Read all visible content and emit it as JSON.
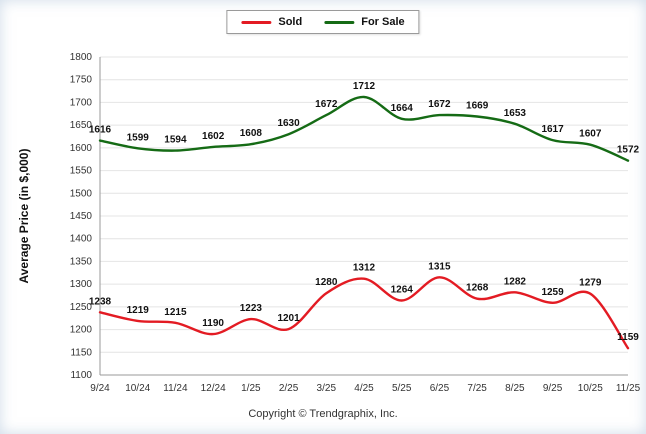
{
  "legend": {
    "items": [
      {
        "label": "Sold"
      },
      {
        "label": "For Sale"
      }
    ]
  },
  "footer": {
    "copyright": "Copyright © Trendgraphix, Inc."
  },
  "chart_data": {
    "type": "line",
    "categories": [
      "9/24",
      "10/24",
      "11/24",
      "12/24",
      "1/25",
      "2/25",
      "3/25",
      "4/25",
      "5/25",
      "6/25",
      "7/25",
      "8/25",
      "9/25",
      "10/25",
      "11/25"
    ],
    "series": [
      {
        "name": "Sold",
        "color": "#e31b23",
        "values": [
          1238,
          1219,
          1215,
          1190,
          1223,
          1201,
          1280,
          1312,
          1264,
          1315,
          1268,
          1282,
          1259,
          1279,
          1159
        ]
      },
      {
        "name": "For Sale",
        "color": "#156b15",
        "values": [
          1616,
          1599,
          1594,
          1602,
          1608,
          1630,
          1672,
          1712,
          1664,
          1672,
          1669,
          1653,
          1617,
          1607,
          1572
        ]
      }
    ],
    "title": "",
    "xlabel": "",
    "ylabel": "Average Price (in $,000)",
    "ylim": [
      1100,
      1800
    ],
    "ytick_step": 50,
    "grid": true,
    "legend_position": "top-center"
  }
}
